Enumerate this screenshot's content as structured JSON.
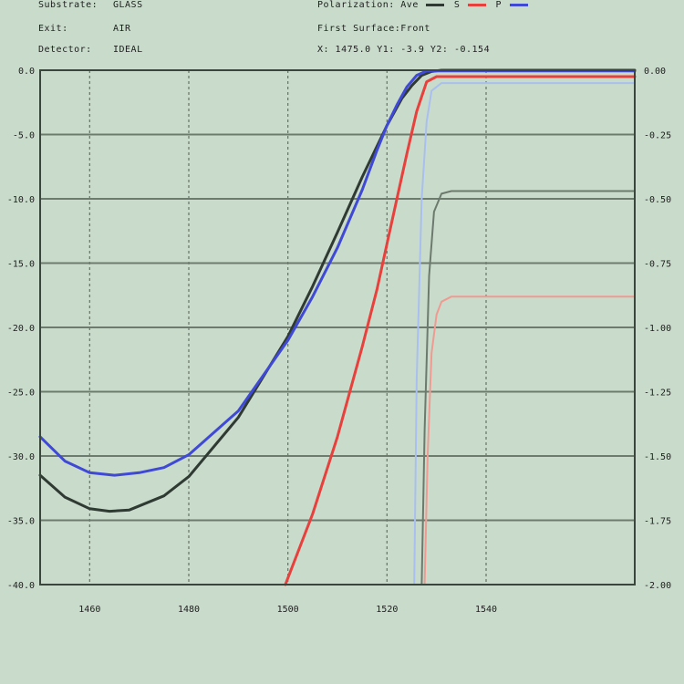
{
  "header": {
    "substrate_label": "Substrate:",
    "substrate_value": "GLASS",
    "exit_label": "Exit:",
    "exit_value": "AIR",
    "detector_label": "Detector:",
    "detector_value": "IDEAL",
    "polarization_label": "Polarization: Ave",
    "pol_s": "S",
    "pol_p": "P",
    "surface_label": "First Surface:Front",
    "readout": "X: 1475.0  Y1: -3.9  Y2: -0.154"
  },
  "colors": {
    "background": "#c9dccb",
    "grid": "#6d7a6e",
    "dark": "#2f3a33",
    "red": "#e8403c",
    "blue": "#3f49d6",
    "light_red": "#f09a92",
    "light_blue": "#a9bff0",
    "gray_line": "#6c7a6e"
  },
  "chart_data": {
    "type": "line",
    "title": "",
    "xlabel": "",
    "ylabel": "",
    "xlim": [
      1450,
      1570
    ],
    "ylim_left": [
      -40,
      0
    ],
    "ylim_right": [
      -2,
      0
    ],
    "x_ticks": [
      1460,
      1480,
      1500,
      1520,
      1540
    ],
    "x_tick_labels": [
      "1460",
      "1480",
      "1500",
      "1520",
      "1540"
    ],
    "y_left_ticks": [
      0,
      -5,
      -10,
      -15,
      -20,
      -25,
      -30,
      -35,
      -40
    ],
    "y_left_tick_labels": [
      "0.0",
      "-5.0",
      "-10.0",
      "-15.0",
      "-20.0",
      "-25.0",
      "-30.0",
      "-35.0",
      "-40.0"
    ],
    "y_right_ticks": [
      0,
      -0.25,
      -0.5,
      -0.75,
      -1,
      -1.25,
      -1.5,
      -1.75,
      -2
    ],
    "y_right_tick_labels": [
      "0.00",
      "-0.25",
      "-0.50",
      "-0.75",
      "-1.00",
      "-1.25",
      "-1.50",
      "-1.75",
      "-2.00"
    ],
    "grid": true,
    "series": [
      {
        "color": "light_blue",
        "axis": "right",
        "width": 2,
        "x": [
          1525.5,
          1526,
          1527,
          1528,
          1529,
          1531,
          1535,
          1570
        ],
        "y": [
          -2,
          -1.2,
          -0.5,
          -0.2,
          -0.08,
          -0.05,
          -0.05,
          -0.05
        ]
      },
      {
        "color": "light_red",
        "axis": "right",
        "width": 2,
        "x": [
          1527.6,
          1528.2,
          1529,
          1530,
          1531,
          1533,
          1537,
          1570
        ],
        "y": [
          -2,
          -1.5,
          -1.1,
          -0.95,
          -0.9,
          -0.88,
          -0.88,
          -0.88
        ]
      },
      {
        "color": "gray_line",
        "axis": "right",
        "width": 2,
        "x": [
          1527,
          1527.6,
          1528.5,
          1529.5,
          1531,
          1533,
          1570
        ],
        "y": [
          -2,
          -1.4,
          -0.8,
          -0.55,
          -0.48,
          -0.47,
          -0.47
        ]
      },
      {
        "color": "red",
        "axis": "left",
        "width": 3,
        "x": [
          1499.5,
          1505,
          1510,
          1515,
          1518,
          1520,
          1522,
          1524,
          1526,
          1528,
          1530,
          1570
        ],
        "y": [
          -40,
          -34.5,
          -28.5,
          -21.5,
          -17,
          -13.5,
          -10,
          -6.5,
          -3.2,
          -0.9,
          -0.5,
          -0.5
        ]
      },
      {
        "color": "dark",
        "axis": "left",
        "width": 3,
        "x": [
          1450,
          1455,
          1460,
          1464,
          1468,
          1475,
          1480,
          1490,
          1500,
          1505,
          1510,
          1515,
          1520,
          1523,
          1525,
          1527,
          1529,
          1531,
          1570
        ],
        "y": [
          -31.5,
          -33.2,
          -34.1,
          -34.3,
          -34.2,
          -33.1,
          -31.6,
          -27,
          -20.7,
          -16.8,
          -12.6,
          -8.3,
          -4.3,
          -2.2,
          -1.2,
          -0.4,
          -0.1,
          0,
          0
        ]
      },
      {
        "color": "blue",
        "axis": "left",
        "width": 3,
        "x": [
          1450,
          1455,
          1460,
          1465,
          1470,
          1475,
          1480,
          1490,
          1500,
          1505,
          1510,
          1515,
          1518,
          1520,
          1522,
          1524,
          1526,
          1528,
          1570
        ],
        "y": [
          -28.5,
          -30.4,
          -31.3,
          -31.5,
          -31.3,
          -30.9,
          -29.9,
          -26.5,
          -21,
          -17.6,
          -13.8,
          -9.3,
          -6.2,
          -4.3,
          -2.7,
          -1.3,
          -0.4,
          -0.05,
          -0.05
        ]
      }
    ]
  }
}
